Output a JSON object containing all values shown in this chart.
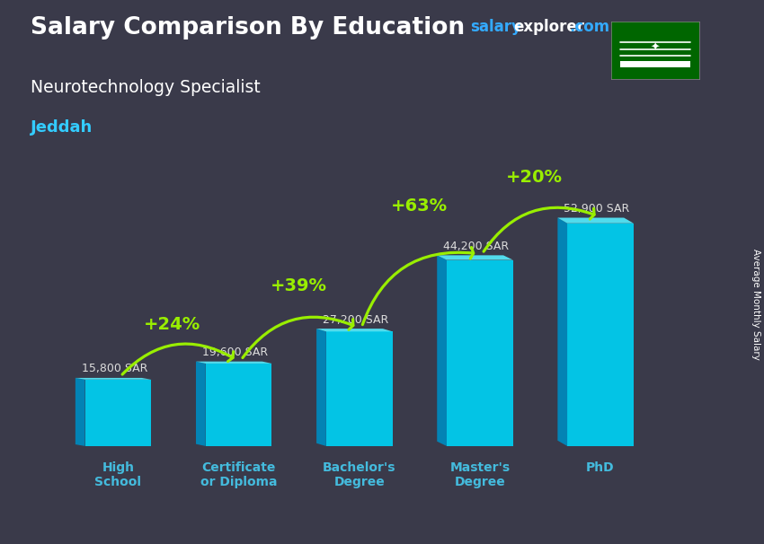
{
  "title_main": "Salary Comparison By Education",
  "title_sub": "Neurotechnology Specialist",
  "title_city": "Jeddah",
  "ylabel": "Average Monthly Salary",
  "categories": [
    "High\nSchool",
    "Certificate\nor Diploma",
    "Bachelor's\nDegree",
    "Master's\nDegree",
    "PhD"
  ],
  "values": [
    15800,
    19600,
    27200,
    44200,
    52900
  ],
  "value_labels": [
    "15,800 SAR",
    "19,600 SAR",
    "27,200 SAR",
    "44,200 SAR",
    "52,900 SAR"
  ],
  "pct_labels": [
    "+24%",
    "+39%",
    "+63%",
    "+20%"
  ],
  "bar_front_color": "#00ccee",
  "bar_left_color": "#0088bb",
  "bar_top_color": "#55eeff",
  "bg_color": "#3a3a4a",
  "title_color": "#ffffff",
  "sub_color": "#ffffff",
  "city_color": "#33ccff",
  "value_label_color": "#dddddd",
  "pct_color": "#99ee00",
  "arrow_color": "#99ee00",
  "tick_color": "#44bbdd",
  "watermark_salary_color": "#33aaff",
  "watermark_explorer_color": "#ffffff",
  "watermark_dot_com_color": "#33aaff",
  "flag_bg": "#006600"
}
